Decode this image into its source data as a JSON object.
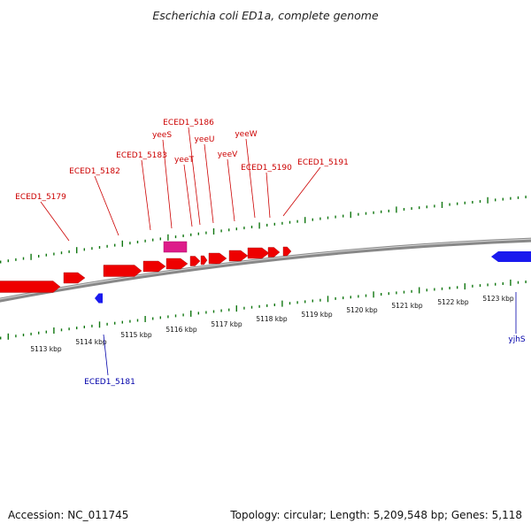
{
  "title": "Escherichia coli ED1a, complete genome",
  "footer": {
    "accession": "Accession: NC_011745",
    "summary": "Topology: circular; Length: 5,209,548 bp; Genes: 5,118"
  },
  "colors": {
    "forward_gene": "#ee0000",
    "reverse_gene": "#1a1aee",
    "rna_gene": "#dd1c8a",
    "tick": "#117711",
    "backbone": "#888888",
    "forward_label": "#cc0000",
    "reverse_label": "#0000aa"
  },
  "scale": {
    "unit": "kbp",
    "labels": [
      "5113 kbp",
      "5114 kbp",
      "5115 kbp",
      "5116 kbp",
      "5117 kbp",
      "5118 kbp",
      "5119 kbp",
      "5120 kbp",
      "5121 kbp",
      "5122 kbp",
      "5123 kbp"
    ]
  },
  "genes": {
    "forward_labels": [
      "ECED1_5179",
      "ECED1_5182",
      "ECED1_5183",
      "yeeS",
      "ECED1_5186",
      "yeeT",
      "yeeU",
      "yeeV",
      "yeeW",
      "ECED1_5190",
      "ECED1_5191"
    ],
    "reverse_labels": [
      "ECED1_5181",
      "yjhS"
    ]
  }
}
